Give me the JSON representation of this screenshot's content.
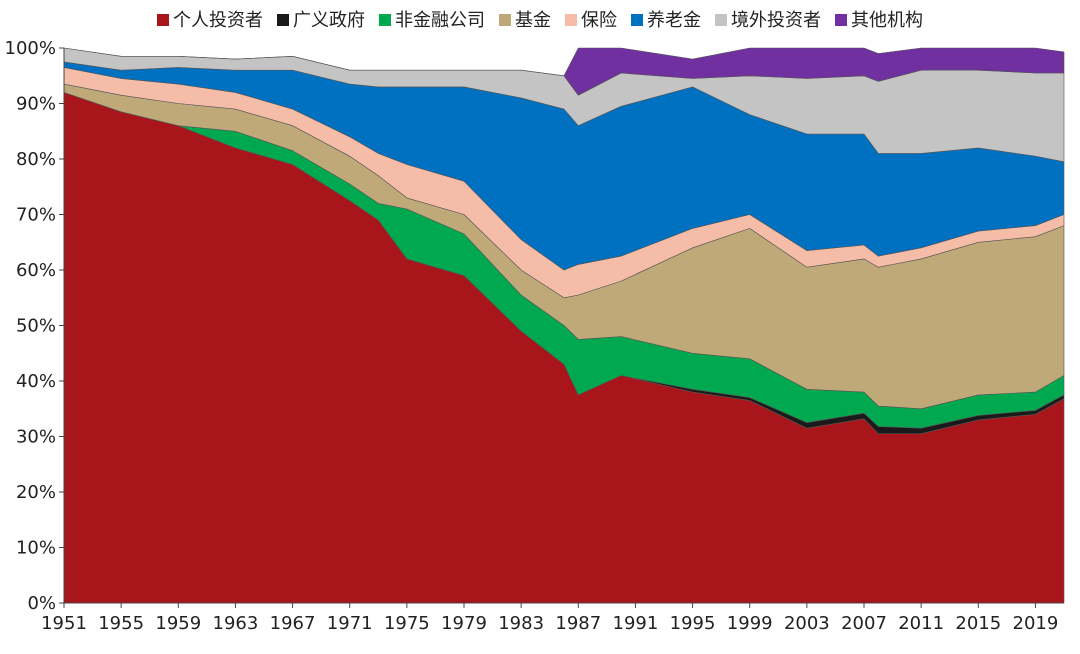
{
  "chart_data": {
    "type": "area",
    "stacked": true,
    "percent": true,
    "title": "",
    "xlabel": "",
    "ylabel": "",
    "ylim": [
      0,
      100
    ],
    "xlim": [
      1951,
      2021
    ],
    "y_ticks": [
      0,
      10,
      20,
      30,
      40,
      50,
      60,
      70,
      80,
      90,
      100
    ],
    "y_tick_labels": [
      "0%",
      "10%",
      "20%",
      "30%",
      "40%",
      "50%",
      "60%",
      "70%",
      "80%",
      "90%",
      "100%"
    ],
    "x_ticks": [
      1951,
      1955,
      1959,
      1963,
      1967,
      1971,
      1975,
      1979,
      1983,
      1987,
      1991,
      1995,
      1999,
      2003,
      2007,
      2011,
      2015,
      2019
    ],
    "grid": false,
    "legend_position": "top",
    "x": [
      1951,
      1955,
      1959,
      1963,
      1967,
      1971,
      1973,
      1975,
      1979,
      1983,
      1986,
      1987,
      1990,
      1995,
      1999,
      2003,
      2007,
      2008,
      2011,
      2015,
      2019,
      2021
    ],
    "series": [
      {
        "name": "个人投资者",
        "color": "#A8161B",
        "values": [
          92,
          88.5,
          86,
          82,
          79,
          72.5,
          69,
          62,
          59,
          49,
          43,
          37.5,
          41,
          38,
          36.5,
          31.5,
          33.2,
          30.5,
          30.5,
          33,
          34,
          36.8
        ]
      },
      {
        "name": "广义政府",
        "color": "#1A1A1A",
        "values": [
          0,
          0,
          0,
          0,
          0,
          0,
          0,
          0,
          0,
          0,
          0,
          0,
          0,
          0.5,
          0.5,
          1,
          1,
          1.3,
          1,
          0.8,
          0.7,
          0.7
        ]
      },
      {
        "name": "非金融公司",
        "color": "#00A94F",
        "values": [
          0,
          0,
          0,
          3,
          2.5,
          3,
          3,
          9,
          7.5,
          6.5,
          7,
          10,
          7,
          6.5,
          7,
          6,
          3.8,
          3.7,
          3.5,
          3.7,
          3.3,
          3.5
        ]
      },
      {
        "name": "基金",
        "color": "#BFA978",
        "values": [
          1.5,
          3,
          4,
          4,
          4.5,
          5,
          5,
          2,
          3.5,
          4.5,
          5,
          8,
          10,
          19,
          23.5,
          22,
          24,
          25,
          27,
          27.5,
          28,
          27
        ]
      },
      {
        "name": "保险",
        "color": "#F5BCA8",
        "values": [
          3,
          3,
          3.5,
          3,
          3,
          3.5,
          4,
          6,
          6,
          5.5,
          5,
          5.5,
          4.5,
          3.5,
          2.5,
          3,
          2.5,
          2,
          2,
          2,
          2,
          2
        ]
      },
      {
        "name": "养老金",
        "color": "#0070C0",
        "values": [
          1,
          1.5,
          3,
          4,
          7,
          9.5,
          12,
          14,
          17,
          25.5,
          29,
          25,
          27,
          25.5,
          18,
          21,
          20,
          18.5,
          17,
          15,
          12.5,
          9.5
        ]
      },
      {
        "name": "境外投资者",
        "color": "#C4C4C4",
        "values": [
          2.5,
          2.5,
          2,
          2,
          2.5,
          2.5,
          3,
          3,
          3,
          5,
          6,
          5.5,
          6,
          1.5,
          7,
          10,
          10.5,
          13,
          15,
          14,
          15,
          16
        ]
      },
      {
        "name": "其他机构",
        "color": "#7030A0",
        "values": [
          0,
          0,
          0,
          0,
          0,
          0,
          0,
          0,
          0,
          0,
          0,
          8.5,
          4.5,
          3.5,
          5,
          5.5,
          5,
          5,
          4,
          4,
          4.5,
          3.8
        ]
      }
    ]
  }
}
